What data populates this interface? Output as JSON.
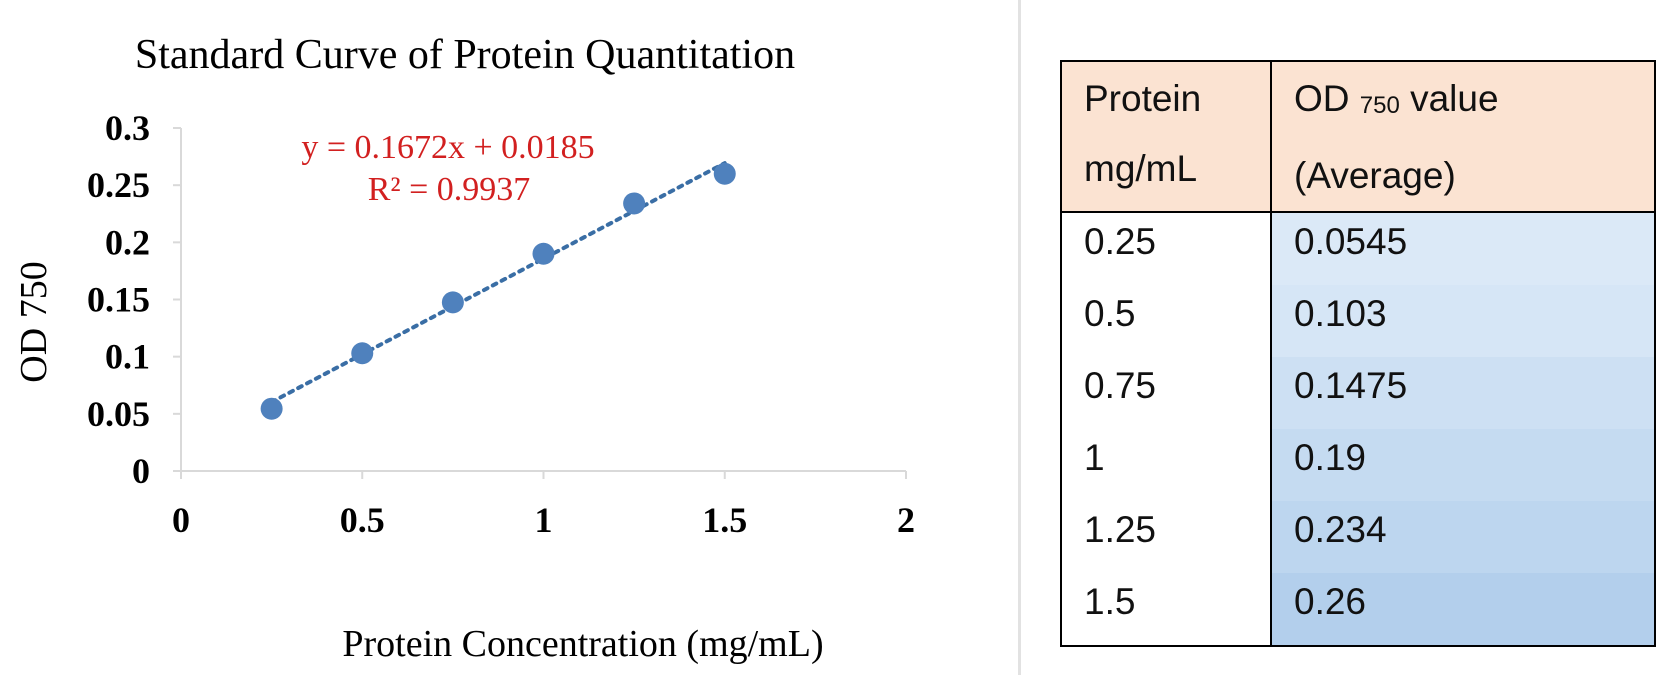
{
  "chart_data": {
    "type": "scatter",
    "title": "Standard Curve of Protein Quantitation",
    "xlabel": "Protein Concentration (mg/mL)",
    "ylabel": "OD 750",
    "xlim": [
      0,
      2
    ],
    "ylim": [
      0,
      0.3
    ],
    "xticks": [
      "0",
      "0.5",
      "1",
      "1.5",
      "2"
    ],
    "yticks": [
      "0",
      "0.05",
      "0.1",
      "0.15",
      "0.2",
      "0.25",
      "0.3"
    ],
    "grid": false,
    "x": [
      0.25,
      0.5,
      0.75,
      1,
      1.25,
      1.5
    ],
    "y": [
      0.0545,
      0.103,
      0.1475,
      0.19,
      0.234,
      0.26
    ],
    "trendline": {
      "type": "linear",
      "style": "dotted",
      "slope": 0.1672,
      "intercept": 0.0185,
      "equation": "y = 0.1672x + 0.0185",
      "r_squared": "R² = 0.9937"
    },
    "colors": {
      "points": "#4f81bd",
      "trendline": "#3a6ea5",
      "equation": "#d22020"
    }
  },
  "table": {
    "headers": {
      "protein_line1": "Protein",
      "protein_line2": "mg/mL",
      "od_prefix": "OD",
      "od_sub": "750",
      "od_suffix": "value",
      "od_line2": "(Average)"
    },
    "rows": [
      {
        "protein": "0.25",
        "od": "0.0545"
      },
      {
        "protein": "0.5",
        "od": "0.103"
      },
      {
        "protein": "0.75",
        "od": "0.1475"
      },
      {
        "protein": "1",
        "od": "0.19"
      },
      {
        "protein": "1.25",
        "od": "0.234"
      },
      {
        "protein": "1.5",
        "od": "0.26"
      }
    ],
    "colors": {
      "header_bg": "#fbe3d2",
      "od_shades": [
        "#dbe9f7",
        "#d6e6f6",
        "#cde0f3",
        "#c5dbf1",
        "#bdd6ef",
        "#b3cfec"
      ]
    }
  }
}
